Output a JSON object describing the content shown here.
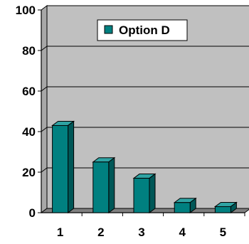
{
  "chart_data": {
    "type": "bar",
    "categories": [
      "1",
      "2",
      "3",
      "4",
      "5"
    ],
    "series": [
      {
        "name": "Option D",
        "values": [
          43,
          25,
          17,
          5,
          3
        ]
      }
    ],
    "ylim": [
      0,
      100
    ],
    "yticks": [
      0,
      20,
      40,
      60,
      80,
      100
    ],
    "legend_position": "top-right",
    "grid": true,
    "style": "3d-column",
    "colors": {
      "bar_front": "#008080",
      "bar_side": "#005757",
      "bar_top": "#2fa3a3",
      "plot_back": "#c0c0c0",
      "gridline": "#000000",
      "floor": "#808080"
    }
  }
}
